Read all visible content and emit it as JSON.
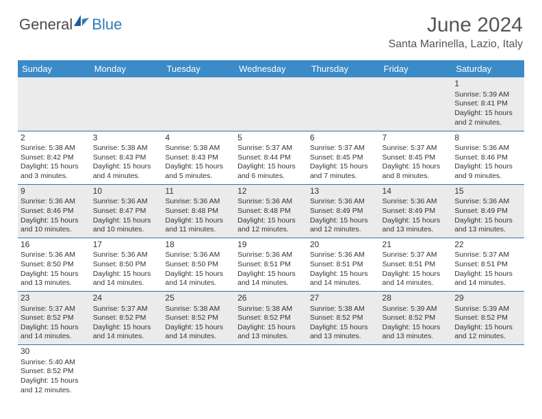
{
  "logo": {
    "text_dark": "General",
    "text_blue": "Blue"
  },
  "title": "June 2024",
  "location": "Santa Marinella, Lazio, Italy",
  "colors": {
    "header_bg": "#3b8bc8",
    "row_shade": "#ebebeb",
    "row_border": "#2f6fa8",
    "text": "#333333",
    "logo_dark": "#4a4a4a",
    "logo_blue": "#2f7ab8"
  },
  "weekdays": [
    "Sunday",
    "Monday",
    "Tuesday",
    "Wednesday",
    "Thursday",
    "Friday",
    "Saturday"
  ],
  "first_weekday_index": 6,
  "days": [
    {
      "n": 1,
      "sunrise": "5:39 AM",
      "sunset": "8:41 PM",
      "daylight": "15 hours and 2 minutes."
    },
    {
      "n": 2,
      "sunrise": "5:38 AM",
      "sunset": "8:42 PM",
      "daylight": "15 hours and 3 minutes."
    },
    {
      "n": 3,
      "sunrise": "5:38 AM",
      "sunset": "8:43 PM",
      "daylight": "15 hours and 4 minutes."
    },
    {
      "n": 4,
      "sunrise": "5:38 AM",
      "sunset": "8:43 PM",
      "daylight": "15 hours and 5 minutes."
    },
    {
      "n": 5,
      "sunrise": "5:37 AM",
      "sunset": "8:44 PM",
      "daylight": "15 hours and 6 minutes."
    },
    {
      "n": 6,
      "sunrise": "5:37 AM",
      "sunset": "8:45 PM",
      "daylight": "15 hours and 7 minutes."
    },
    {
      "n": 7,
      "sunrise": "5:37 AM",
      "sunset": "8:45 PM",
      "daylight": "15 hours and 8 minutes."
    },
    {
      "n": 8,
      "sunrise": "5:36 AM",
      "sunset": "8:46 PM",
      "daylight": "15 hours and 9 minutes."
    },
    {
      "n": 9,
      "sunrise": "5:36 AM",
      "sunset": "8:46 PM",
      "daylight": "15 hours and 10 minutes."
    },
    {
      "n": 10,
      "sunrise": "5:36 AM",
      "sunset": "8:47 PM",
      "daylight": "15 hours and 10 minutes."
    },
    {
      "n": 11,
      "sunrise": "5:36 AM",
      "sunset": "8:48 PM",
      "daylight": "15 hours and 11 minutes."
    },
    {
      "n": 12,
      "sunrise": "5:36 AM",
      "sunset": "8:48 PM",
      "daylight": "15 hours and 12 minutes."
    },
    {
      "n": 13,
      "sunrise": "5:36 AM",
      "sunset": "8:49 PM",
      "daylight": "15 hours and 12 minutes."
    },
    {
      "n": 14,
      "sunrise": "5:36 AM",
      "sunset": "8:49 PM",
      "daylight": "15 hours and 13 minutes."
    },
    {
      "n": 15,
      "sunrise": "5:36 AM",
      "sunset": "8:49 PM",
      "daylight": "15 hours and 13 minutes."
    },
    {
      "n": 16,
      "sunrise": "5:36 AM",
      "sunset": "8:50 PM",
      "daylight": "15 hours and 13 minutes."
    },
    {
      "n": 17,
      "sunrise": "5:36 AM",
      "sunset": "8:50 PM",
      "daylight": "15 hours and 14 minutes."
    },
    {
      "n": 18,
      "sunrise": "5:36 AM",
      "sunset": "8:50 PM",
      "daylight": "15 hours and 14 minutes."
    },
    {
      "n": 19,
      "sunrise": "5:36 AM",
      "sunset": "8:51 PM",
      "daylight": "15 hours and 14 minutes."
    },
    {
      "n": 20,
      "sunrise": "5:36 AM",
      "sunset": "8:51 PM",
      "daylight": "15 hours and 14 minutes."
    },
    {
      "n": 21,
      "sunrise": "5:37 AM",
      "sunset": "8:51 PM",
      "daylight": "15 hours and 14 minutes."
    },
    {
      "n": 22,
      "sunrise": "5:37 AM",
      "sunset": "8:51 PM",
      "daylight": "15 hours and 14 minutes."
    },
    {
      "n": 23,
      "sunrise": "5:37 AM",
      "sunset": "8:52 PM",
      "daylight": "15 hours and 14 minutes."
    },
    {
      "n": 24,
      "sunrise": "5:37 AM",
      "sunset": "8:52 PM",
      "daylight": "15 hours and 14 minutes."
    },
    {
      "n": 25,
      "sunrise": "5:38 AM",
      "sunset": "8:52 PM",
      "daylight": "15 hours and 14 minutes."
    },
    {
      "n": 26,
      "sunrise": "5:38 AM",
      "sunset": "8:52 PM",
      "daylight": "15 hours and 13 minutes."
    },
    {
      "n": 27,
      "sunrise": "5:38 AM",
      "sunset": "8:52 PM",
      "daylight": "15 hours and 13 minutes."
    },
    {
      "n": 28,
      "sunrise": "5:39 AM",
      "sunset": "8:52 PM",
      "daylight": "15 hours and 13 minutes."
    },
    {
      "n": 29,
      "sunrise": "5:39 AM",
      "sunset": "8:52 PM",
      "daylight": "15 hours and 12 minutes."
    },
    {
      "n": 30,
      "sunrise": "5:40 AM",
      "sunset": "8:52 PM",
      "daylight": "15 hours and 12 minutes."
    }
  ],
  "labels": {
    "sunrise": "Sunrise:",
    "sunset": "Sunset:",
    "daylight": "Daylight:"
  }
}
